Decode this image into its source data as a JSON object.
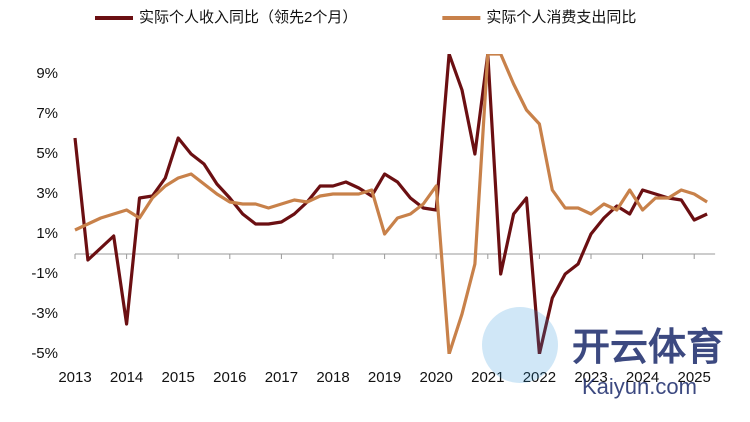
{
  "chart_data": {
    "type": "line",
    "categories": [
      "2013",
      null,
      null,
      null,
      "2014",
      null,
      null,
      null,
      "2015",
      null,
      null,
      null,
      "2016",
      null,
      null,
      null,
      "2017",
      null,
      null,
      null,
      "2018",
      null,
      null,
      null,
      "2019",
      null,
      null,
      null,
      "2020",
      null,
      null,
      null,
      "2021",
      null,
      null,
      null,
      "2022",
      null,
      null,
      null,
      "2023",
      null,
      null,
      null,
      "2024",
      null,
      null,
      null,
      "2025",
      null
    ],
    "series": [
      {
        "name": "实际个人收入同比（领先2个月）",
        "color": "#6b0f12",
        "values": [
          5.8,
          -0.3,
          0.3,
          0.9,
          -3.5,
          2.8,
          2.9,
          3.8,
          5.8,
          5.0,
          4.5,
          3.5,
          2.8,
          2.0,
          1.5,
          1.5,
          1.6,
          2.0,
          2.6,
          3.4,
          3.4,
          3.6,
          3.3,
          2.9,
          4.0,
          3.6,
          2.8,
          2.3,
          2.2,
          10,
          8.2,
          5.0,
          10,
          -1.0,
          2.0,
          2.8,
          -5,
          -2.2,
          -1.0,
          -0.5,
          1.0,
          1.8,
          2.4,
          2.0,
          3.2,
          3.0,
          2.8,
          2.7,
          1.7,
          2.0
        ]
      },
      {
        "name": "实际个人消费支出同比",
        "color": "#c8814a",
        "values": [
          1.2,
          1.5,
          1.8,
          2.0,
          2.2,
          1.8,
          2.8,
          3.4,
          3.8,
          4.0,
          3.5,
          3.0,
          2.6,
          2.5,
          2.5,
          2.3,
          2.5,
          2.7,
          2.6,
          2.9,
          3.0,
          3.0,
          3.0,
          3.2,
          1.0,
          1.8,
          2.0,
          2.5,
          3.4,
          -5,
          -3.0,
          -0.5,
          10,
          10,
          8.5,
          7.2,
          6.5,
          3.2,
          2.3,
          2.3,
          2.0,
          2.5,
          2.2,
          3.2,
          2.2,
          2.8,
          2.8,
          3.2,
          3.0,
          2.6
        ]
      }
    ],
    "ylim": [
      -5,
      10
    ],
    "yticks": [
      {
        "value": -5,
        "label": "-5%"
      },
      {
        "value": -3,
        "label": "-3%"
      },
      {
        "value": -1,
        "label": "-1%"
      },
      {
        "value": 1,
        "label": "1%"
      },
      {
        "value": 3,
        "label": "3%"
      },
      {
        "value": 5,
        "label": "5%"
      },
      {
        "value": 7,
        "label": "7%"
      },
      {
        "value": 9,
        "label": "9%"
      }
    ],
    "legend": "top",
    "watermark": [
      "开云体育",
      "Kaiyun.com"
    ]
  }
}
